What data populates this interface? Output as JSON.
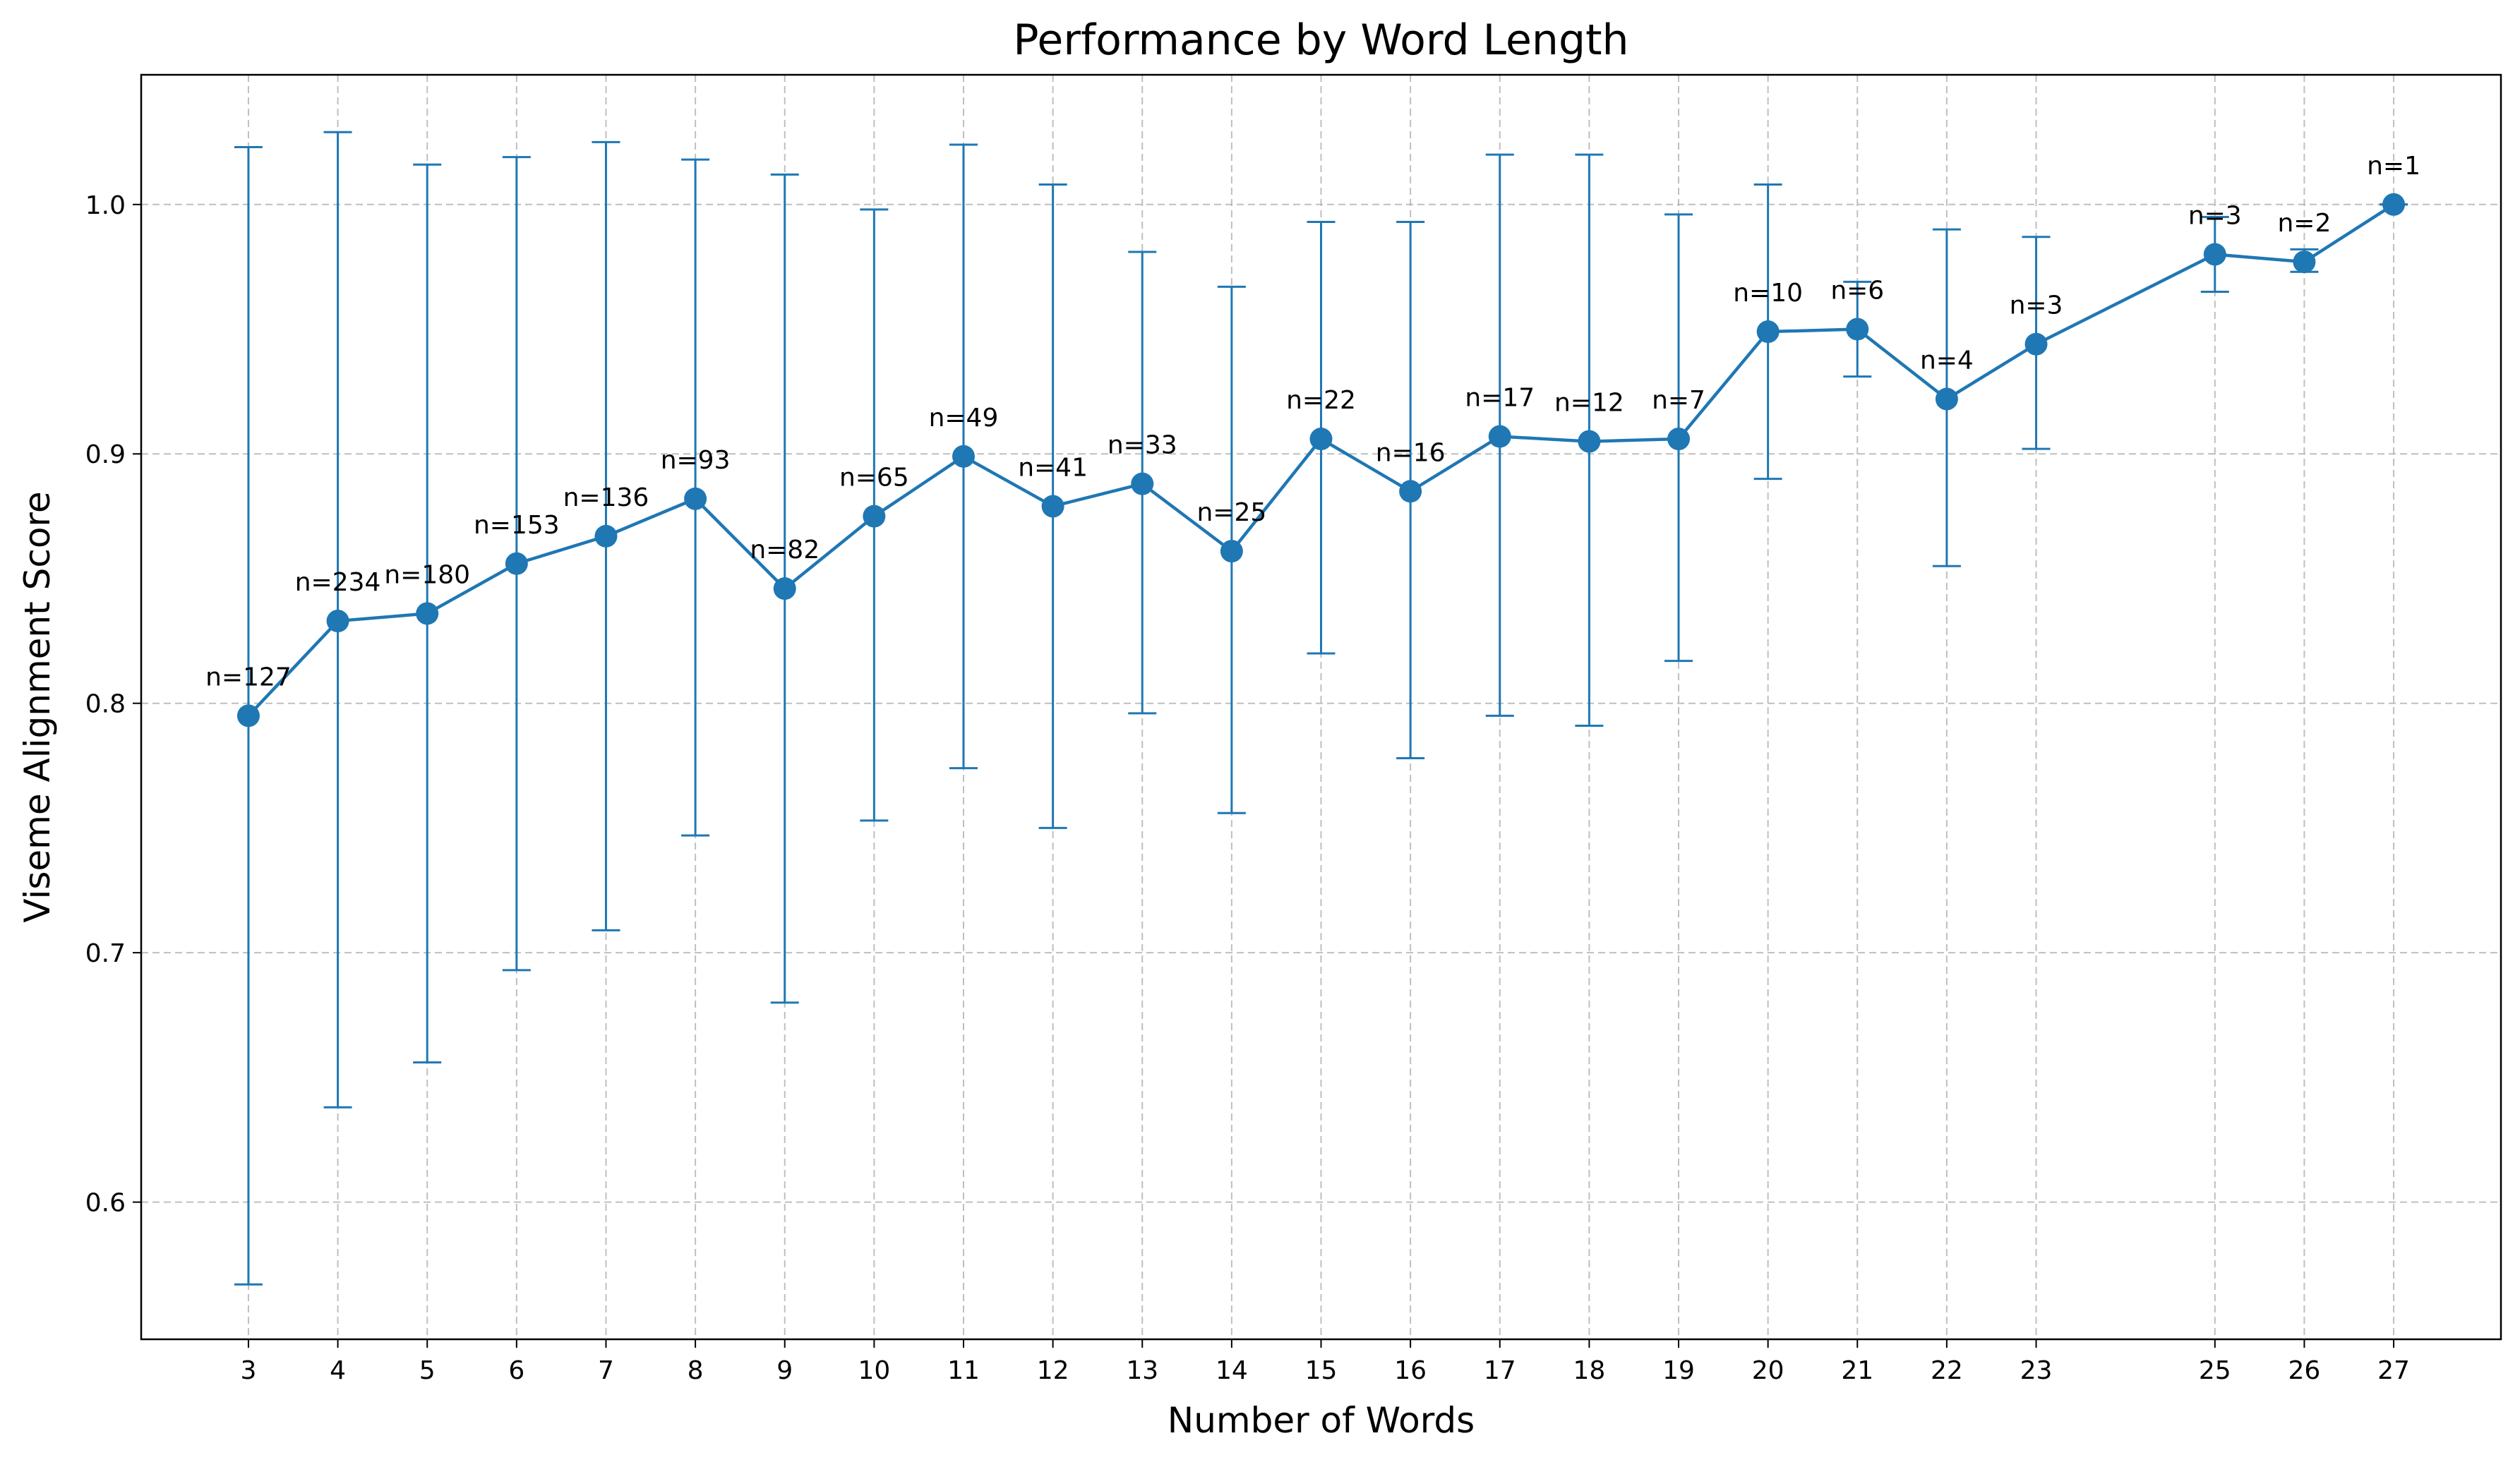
{
  "chart_data": {
    "type": "line",
    "title": "Performance by Word Length",
    "xlabel": "Number of Words",
    "ylabel": "Viseme Alignment Score",
    "xlim": [
      1.8,
      28.2
    ],
    "ylim": [
      0.545,
      1.052
    ],
    "x_ticks": [
      3,
      4,
      5,
      6,
      7,
      8,
      9,
      10,
      11,
      12,
      13,
      14,
      15,
      16,
      17,
      18,
      19,
      20,
      21,
      22,
      23,
      25,
      26,
      27
    ],
    "y_ticks": [
      0.6,
      0.7,
      0.8,
      0.9,
      1.0
    ],
    "y_tick_labels": [
      "0.6",
      "0.7",
      "0.8",
      "0.9",
      "1.0"
    ],
    "grid": true,
    "color": "#1f77b4",
    "series": [
      {
        "points": [
          {
            "x": 3,
            "y": 0.795,
            "err_low": 0.567,
            "err_high": 1.023,
            "label": "n=127"
          },
          {
            "x": 4,
            "y": 0.833,
            "err_low": 0.638,
            "err_high": 1.029,
            "label": "n=234"
          },
          {
            "x": 5,
            "y": 0.836,
            "err_low": 0.656,
            "err_high": 1.016,
            "label": "n=180"
          },
          {
            "x": 6,
            "y": 0.856,
            "err_low": 0.693,
            "err_high": 1.019,
            "label": "n=153"
          },
          {
            "x": 7,
            "y": 0.867,
            "err_low": 0.709,
            "err_high": 1.025,
            "label": "n=136"
          },
          {
            "x": 8,
            "y": 0.882,
            "err_low": 0.747,
            "err_high": 1.018,
            "label": "n=93"
          },
          {
            "x": 9,
            "y": 0.846,
            "err_low": 0.68,
            "err_high": 1.012,
            "label": "n=82"
          },
          {
            "x": 10,
            "y": 0.875,
            "err_low": 0.753,
            "err_high": 0.998,
            "label": "n=65"
          },
          {
            "x": 11,
            "y": 0.899,
            "err_low": 0.774,
            "err_high": 1.024,
            "label": "n=49"
          },
          {
            "x": 12,
            "y": 0.879,
            "err_low": 0.75,
            "err_high": 1.008,
            "label": "n=41"
          },
          {
            "x": 13,
            "y": 0.888,
            "err_low": 0.796,
            "err_high": 0.981,
            "label": "n=33"
          },
          {
            "x": 14,
            "y": 0.861,
            "err_low": 0.756,
            "err_high": 0.967,
            "label": "n=25"
          },
          {
            "x": 15,
            "y": 0.906,
            "err_low": 0.82,
            "err_high": 0.993,
            "label": "n=22"
          },
          {
            "x": 16,
            "y": 0.885,
            "err_low": 0.778,
            "err_high": 0.993,
            "label": "n=16"
          },
          {
            "x": 17,
            "y": 0.907,
            "err_low": 0.795,
            "err_high": 1.02,
            "label": "n=17"
          },
          {
            "x": 18,
            "y": 0.905,
            "err_low": 0.791,
            "err_high": 1.02,
            "label": "n=12"
          },
          {
            "x": 19,
            "y": 0.906,
            "err_low": 0.817,
            "err_high": 0.996,
            "label": "n=7"
          },
          {
            "x": 20,
            "y": 0.949,
            "err_low": 0.89,
            "err_high": 1.008,
            "label": "n=10"
          },
          {
            "x": 21,
            "y": 0.95,
            "err_low": 0.931,
            "err_high": 0.969,
            "label": "n=6"
          },
          {
            "x": 22,
            "y": 0.922,
            "err_low": 0.855,
            "err_high": 0.99,
            "label": "n=4"
          },
          {
            "x": 23,
            "y": 0.944,
            "err_low": 0.902,
            "err_high": 0.987,
            "label": "n=3"
          },
          {
            "x": 25,
            "y": 0.98,
            "err_low": 0.965,
            "err_high": 0.995,
            "label": "n=3"
          },
          {
            "x": 26,
            "y": 0.977,
            "err_low": 0.973,
            "err_high": 0.982,
            "label": "n=2"
          },
          {
            "x": 27,
            "y": 1.0,
            "err_low": 1.0,
            "err_high": 1.0,
            "label": "n=1"
          }
        ]
      }
    ]
  }
}
